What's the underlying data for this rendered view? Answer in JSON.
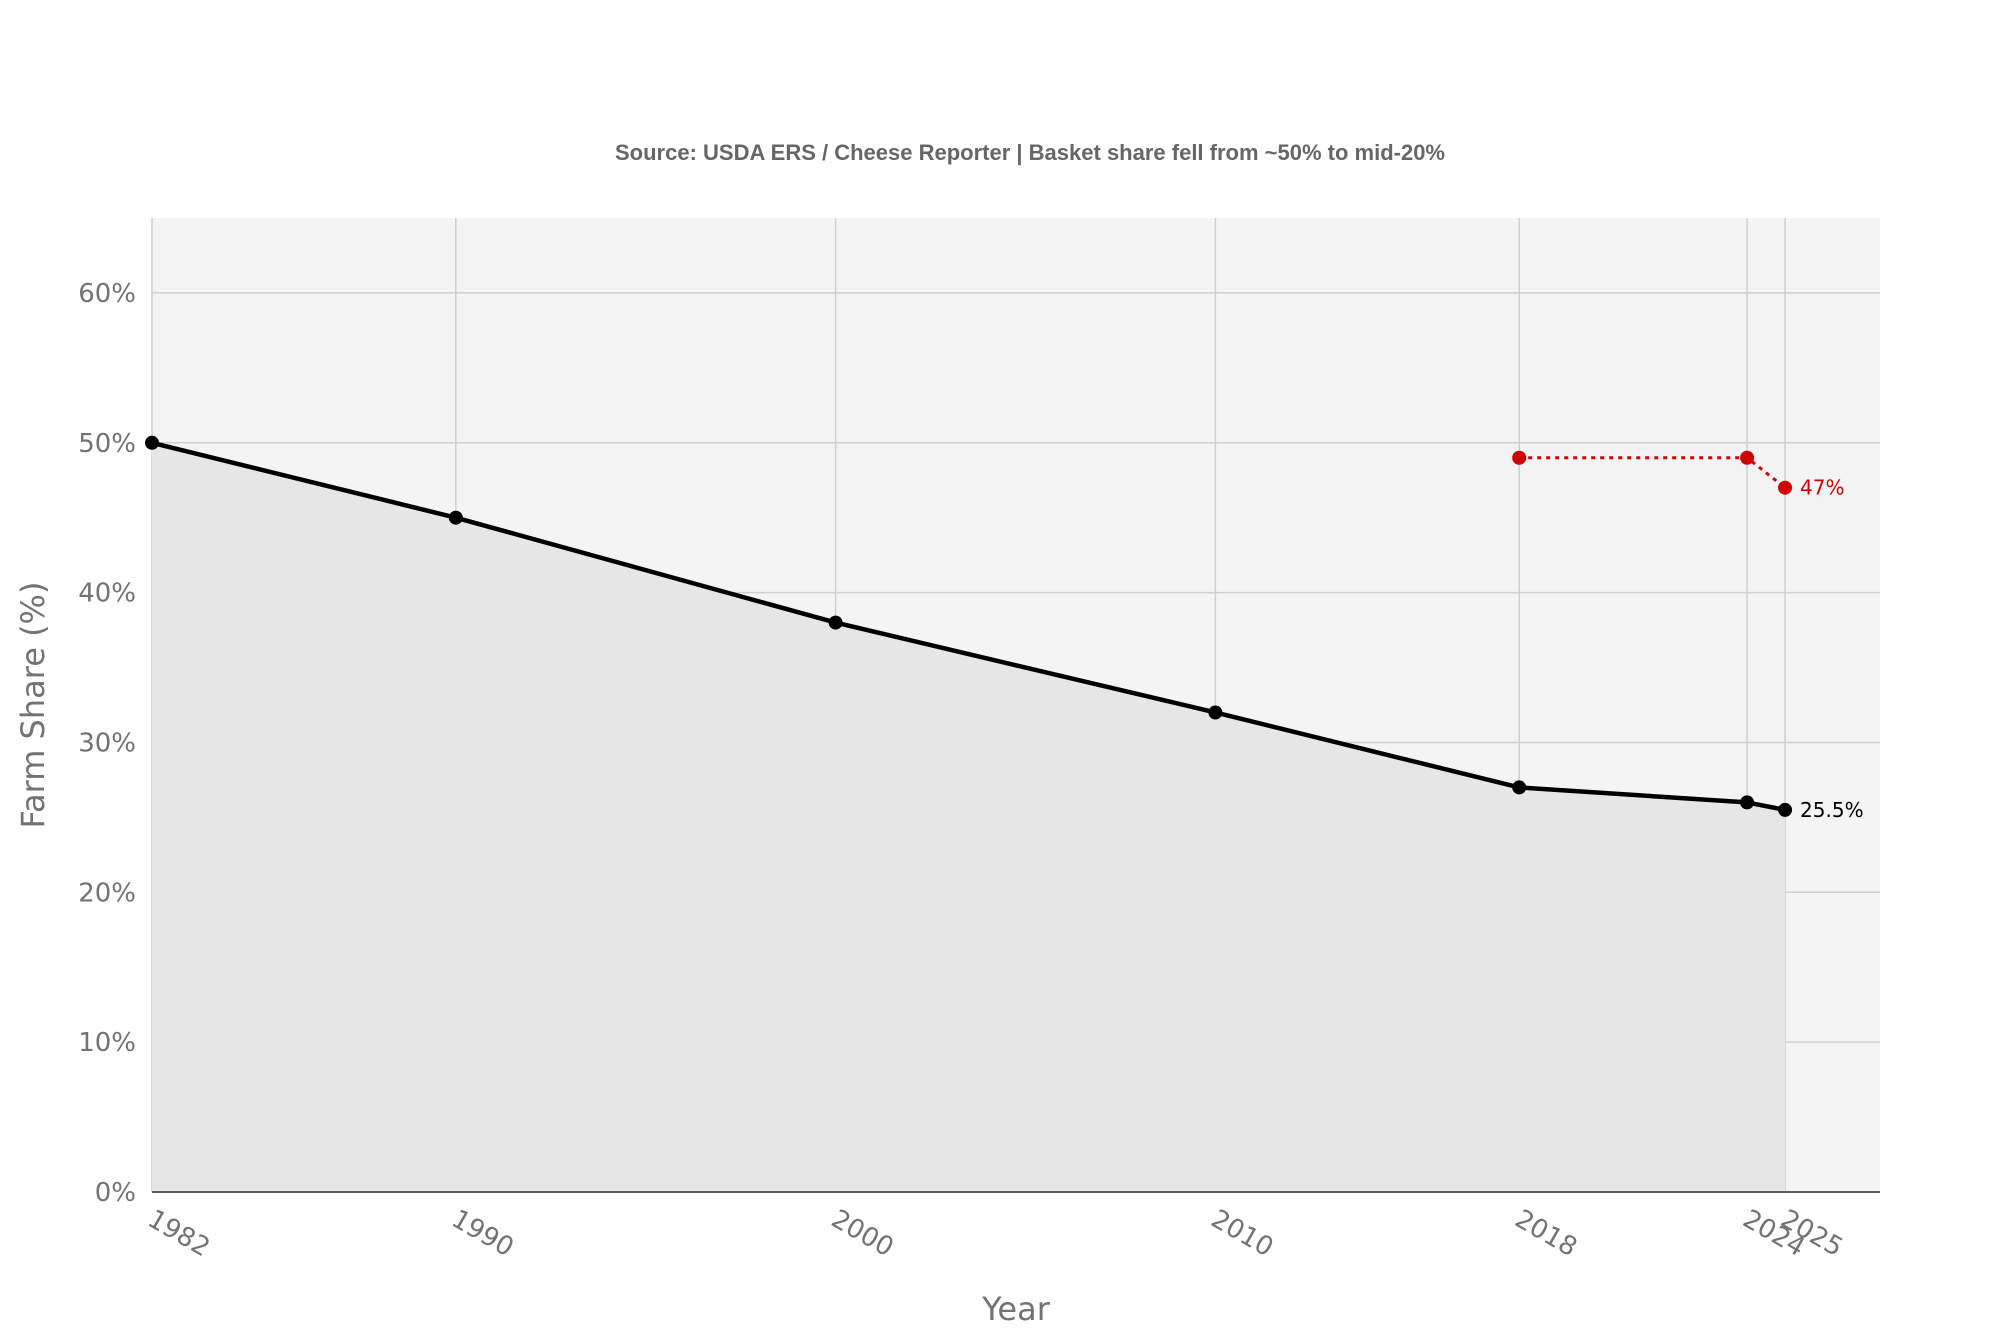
{
  "subtitle": "Source: USDA ERS / Cheese Reporter | Basket share fell from ~50% to mid-20%",
  "chart_data": {
    "type": "line",
    "title": "",
    "subtitle": "Source: USDA ERS / Cheese Reporter | Basket share fell from ~50% to mid-20%",
    "xlabel": "Year",
    "ylabel": "Farm Share (%)",
    "x_ticks": [
      1982,
      1990,
      2000,
      2010,
      2018,
      2024,
      2025
    ],
    "y_ticks": [
      "0%",
      "10%",
      "20%",
      "30%",
      "40%",
      "50%",
      "60%"
    ],
    "xlim": [
      1982,
      2027.5
    ],
    "ylim": [
      0,
      65
    ],
    "grid": true,
    "legend": "none",
    "series": [
      {
        "style": "solid-area",
        "color": "#000000",
        "fill": "#e6e6e6",
        "x": [
          1982,
          1990,
          2000,
          2010,
          2018,
          2024,
          2025
        ],
        "values": [
          50,
          45,
          38,
          32,
          27,
          26,
          25.5
        ],
        "end_label": "25.5%"
      },
      {
        "style": "dotted",
        "color": "#cc0000",
        "x": [
          2018,
          2024,
          2025
        ],
        "values": [
          49,
          49,
          47
        ],
        "end_label": "47%"
      }
    ]
  },
  "colors": {
    "plot_bg": "#f4f4f4",
    "grid": "#d0d0d0",
    "axis": "#333333"
  }
}
